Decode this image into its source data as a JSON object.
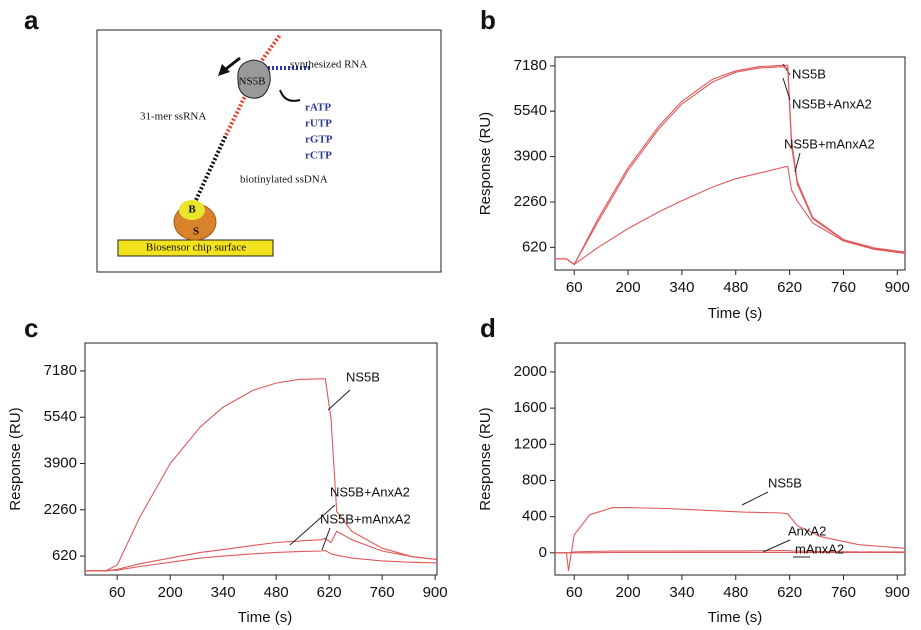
{
  "diagram": {
    "panel": "a",
    "synthesized": "synthesized RNA",
    "enzyme": "NS5B",
    "template": "31-mer ssRNA",
    "nucleotides": [
      "rATP",
      "rUTP",
      "rGTP",
      "rCTP"
    ],
    "dna": "biotinylated ssDNA",
    "biotin": "B",
    "streptavidin": "S",
    "chip": "Biosensor chip surface"
  },
  "chart_data": [
    {
      "type": "line",
      "panel": "b",
      "x_label": "Time (s)",
      "y_label": "Response (RU)",
      "x": [
        10,
        40,
        60,
        120,
        200,
        280,
        340,
        420,
        480,
        540,
        600,
        615,
        625,
        640,
        680,
        760,
        840,
        920
      ],
      "series": [
        {
          "name": "NS5B",
          "color": "#e0595b",
          "values": [
            200,
            200,
            0,
            1600,
            3500,
            5000,
            5900,
            6700,
            7000,
            7150,
            7200,
            7200,
            4500,
            3000,
            1700,
            900,
            600,
            450
          ]
        },
        {
          "name": "NS5B+AnxA2",
          "color": "#e0595b",
          "values": [
            200,
            200,
            0,
            1500,
            3400,
            4900,
            5800,
            6600,
            6950,
            7100,
            7150,
            7100,
            4300,
            2900,
            1650,
            880,
            580,
            430
          ]
        },
        {
          "name": "NS5B+mAnxA2",
          "color": "#e0595b",
          "values": [
            200,
            200,
            0,
            600,
            1300,
            1900,
            2300,
            2800,
            3100,
            3300,
            3500,
            3550,
            2700,
            2300,
            1500,
            850,
            550,
            400
          ]
        }
      ],
      "xlim": [
        10,
        920
      ],
      "xticks": [
        60,
        200,
        340,
        480,
        620,
        760,
        900
      ],
      "ylim": [
        -200,
        7500
      ],
      "yticks": [
        620,
        2260,
        3900,
        5540,
        7180
      ]
    },
    {
      "type": "line",
      "panel": "c",
      "x_label": "Time (s)",
      "y_label": "Response (RU)",
      "x": [
        -25,
        30,
        60,
        120,
        200,
        280,
        340,
        420,
        480,
        540,
        600,
        610,
        625,
        640,
        680,
        760,
        840,
        905
      ],
      "series": [
        {
          "name": "NS5B",
          "color": "#e0595b",
          "values": [
            100,
            100,
            300,
            2000,
            3900,
            5200,
            5900,
            6500,
            6750,
            6880,
            6900,
            6900,
            5500,
            2200,
            1500,
            900,
            600,
            500
          ]
        },
        {
          "name": "NS5B+AnxA2",
          "color": "#e0595b",
          "values": [
            100,
            100,
            150,
            350,
            550,
            750,
            850,
            1000,
            1100,
            1150,
            1200,
            1250,
            1100,
            1500,
            1200,
            800,
            600,
            500
          ]
        },
        {
          "name": "NS5B+mAnxA2",
          "color": "#e0595b",
          "values": [
            100,
            100,
            120,
            250,
            400,
            550,
            620,
            700,
            750,
            780,
            800,
            820,
            700,
            650,
            550,
            450,
            400,
            380
          ]
        }
      ],
      "xlim": [
        -25,
        905
      ],
      "xticks": [
        60,
        200,
        340,
        480,
        620,
        760,
        900
      ],
      "ylim": [
        -50,
        8170
      ],
      "yticks": [
        620,
        2260,
        3900,
        5540,
        7180
      ]
    },
    {
      "type": "line",
      "panel": "d",
      "x_label": "Time (s)",
      "y_label": "Response (RU)",
      "x": [
        10,
        40,
        45,
        60,
        100,
        160,
        200,
        300,
        400,
        500,
        600,
        615,
        625,
        640,
        700,
        800,
        920
      ],
      "series": [
        {
          "name": "NS5B",
          "color": "#e0595b",
          "values": [
            0,
            0,
            -200,
            200,
            420,
            500,
            500,
            490,
            470,
            450,
            440,
            430,
            380,
            300,
            180,
            90,
            50
          ]
        },
        {
          "name": "AnxA2",
          "color": "#e0595b",
          "values": [
            0,
            0,
            0,
            10,
            15,
            20,
            20,
            20,
            22,
            22,
            25,
            25,
            20,
            20,
            15,
            10,
            10
          ]
        },
        {
          "name": "mAnxA2",
          "color": "#e0595b",
          "values": [
            0,
            0,
            0,
            0,
            0,
            5,
            5,
            5,
            5,
            5,
            5,
            5,
            5,
            5,
            5,
            5,
            5
          ]
        }
      ],
      "xlim": [
        10,
        920
      ],
      "xticks": [
        60,
        200,
        340,
        480,
        620,
        760,
        900
      ],
      "ylim": [
        -245,
        2320
      ],
      "yticks": [
        0,
        400,
        800,
        1200,
        1600,
        2000
      ]
    }
  ]
}
